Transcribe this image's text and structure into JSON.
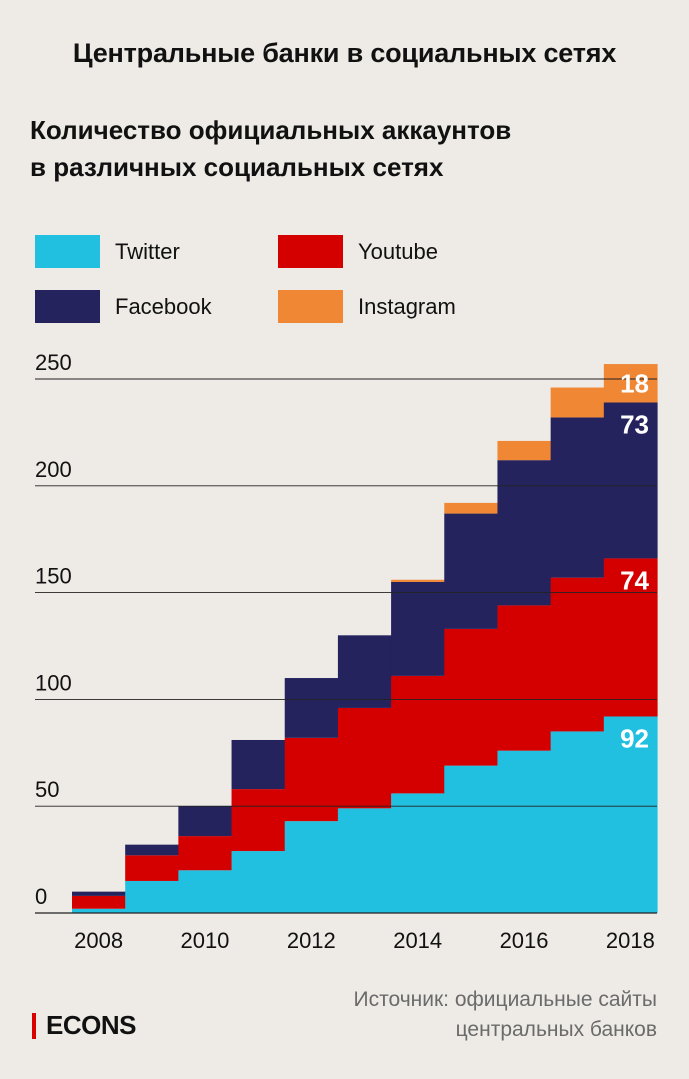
{
  "header": {
    "title": "Центральные банки в социальных сетях"
  },
  "chart_data": {
    "type": "bar",
    "stacked": true,
    "title": "Количество официальных аккаунтов в различных социальных сетях",
    "title_lines": [
      "Количество официальных аккаунтов",
      "в различных социальных сетях"
    ],
    "categories": [
      "2008",
      "2009",
      "2010",
      "2011",
      "2012",
      "2013",
      "2014",
      "2015",
      "2016",
      "2017",
      "2018"
    ],
    "x_tick_labels": [
      "2008",
      "2010",
      "2012",
      "2014",
      "2016",
      "2018"
    ],
    "y_ticks": [
      0,
      50,
      100,
      150,
      200,
      250
    ],
    "ylim": [
      0,
      255
    ],
    "grid": true,
    "legend_position": "top",
    "series": [
      {
        "name": "Twitter",
        "color": "#22c0e0",
        "values": [
          2,
          15,
          20,
          29,
          43,
          49,
          56,
          69,
          76,
          85,
          92
        ]
      },
      {
        "name": "Youtube",
        "color": "#d40000",
        "values": [
          6,
          12,
          16,
          29,
          39,
          47,
          55,
          64,
          68,
          72,
          74
        ]
      },
      {
        "name": "Facebook",
        "color": "#25235e",
        "values": [
          2,
          5,
          14,
          23,
          28,
          34,
          44,
          54,
          68,
          75,
          73
        ]
      },
      {
        "name": "Instagram",
        "color": "#f08735",
        "values": [
          0,
          0,
          0,
          0,
          0,
          0,
          1,
          5,
          9,
          14,
          18
        ]
      }
    ],
    "data_labels": [
      {
        "series": "Instagram",
        "category": "2018",
        "text": "18",
        "color": "#ffffff"
      },
      {
        "series": "Facebook",
        "category": "2018",
        "text": "73",
        "color": "#ffffff"
      },
      {
        "series": "Youtube",
        "category": "2018",
        "text": "74",
        "color": "#ffffff"
      },
      {
        "series": "Twitter",
        "category": "2018",
        "text": "92",
        "color": "#ffffff"
      }
    ]
  },
  "legend": [
    {
      "label": "Twitter",
      "color": "#22c0e0"
    },
    {
      "label": "Youtube",
      "color": "#d40000"
    },
    {
      "label": "Facebook",
      "color": "#25235e"
    },
    {
      "label": "Instagram",
      "color": "#f08735"
    }
  ],
  "footer": {
    "source_line1": "Источник: официальные сайты",
    "source_line2": "центральных банков",
    "logo_text": "ECONS",
    "logo_color": "#d90000"
  }
}
